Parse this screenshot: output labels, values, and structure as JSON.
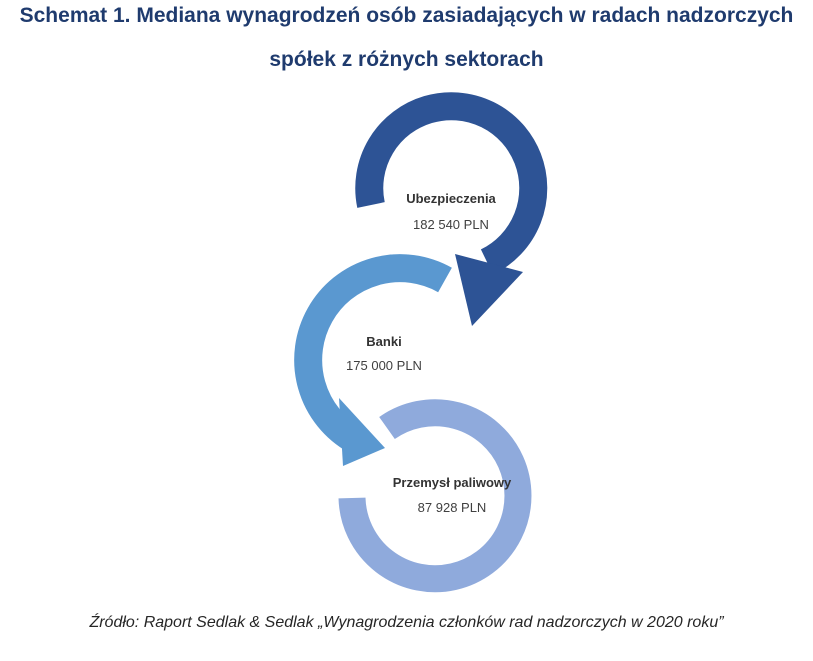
{
  "title": {
    "line1": "Schemat 1. Mediana wynagrodzeń osób zasiadających w radach nadzorczych",
    "line2": "spółek z różnych sektorach"
  },
  "nodes": [
    {
      "name": "Ubezpieczenia",
      "value": "182 540 PLN",
      "color": "#2d5395"
    },
    {
      "name": "Banki",
      "value": "175 000 PLN",
      "color": "#5a98d0"
    },
    {
      "name": "Przemysł paliwowy",
      "value": "87 928 PLN",
      "color": "#8faadc"
    }
  ],
  "source": "Źródło: Raport Sedlak & Sedlak „Wynagrodzenia członków rad nadzorczych w 2020 roku”"
}
